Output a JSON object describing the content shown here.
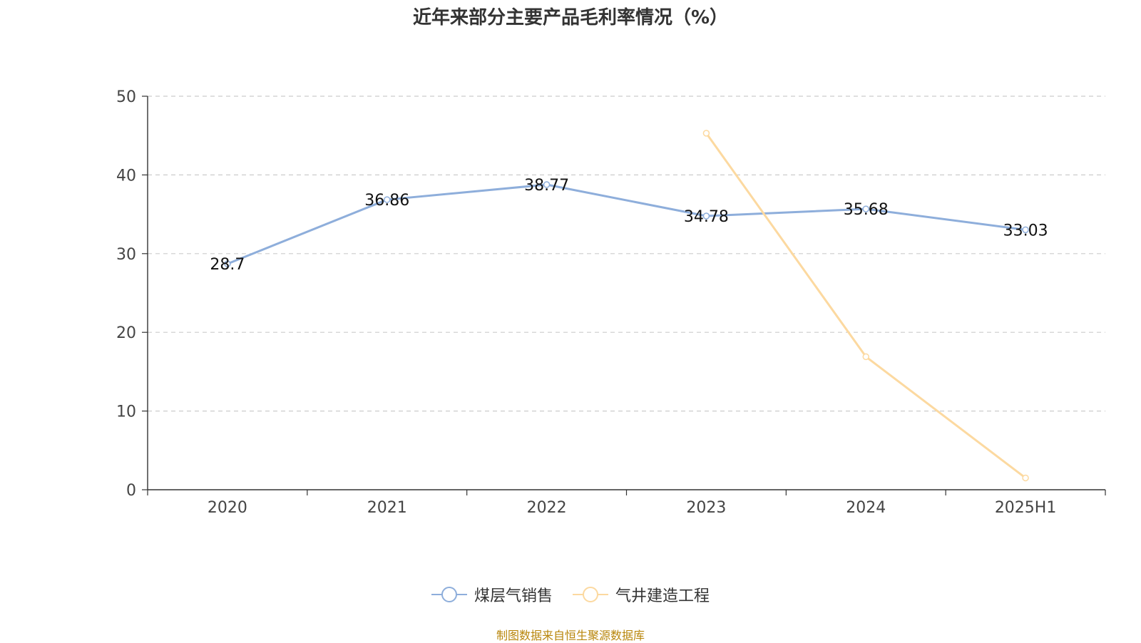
{
  "chart_data": {
    "type": "line",
    "title": "近年来部分主要产品毛利率情况（%）",
    "categories": [
      "2020",
      "2021",
      "2022",
      "2023",
      "2024",
      "2025H1"
    ],
    "ylim": [
      0,
      50
    ],
    "yticks": [
      0,
      10,
      20,
      30,
      40,
      50
    ],
    "grid": true,
    "legend_position": "bottom",
    "series": [
      {
        "name": "煤层气销售",
        "color": "#8eaedb",
        "values": [
          28.7,
          36.86,
          38.77,
          34.78,
          35.68,
          33.03
        ],
        "labels": [
          "28.7",
          "36.86",
          "38.77",
          "34.78",
          "35.68",
          "33.03"
        ],
        "show_labels": true
      },
      {
        "name": "气井建造工程",
        "color": "#fcd9a0",
        "values": [
          null,
          null,
          null,
          45.3,
          16.9,
          1.5
        ],
        "show_labels": false
      }
    ]
  },
  "source_note": "制图数据来自恒生聚源数据库"
}
